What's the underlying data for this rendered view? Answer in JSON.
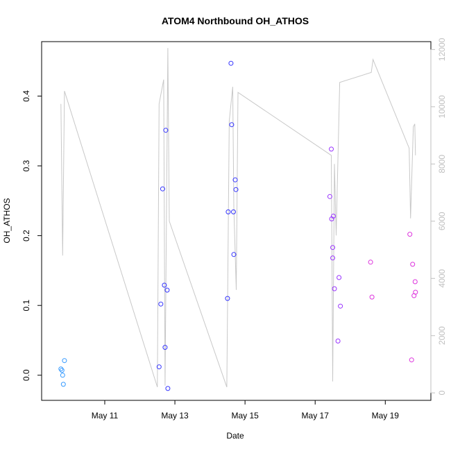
{
  "chart_data": {
    "type": "scatter",
    "title": "ATOM4 Northbound OH_ATHOS",
    "xlabel": "Date",
    "ylabel": "OH_ATHOS",
    "x_ticks": [
      {
        "label": "May 11",
        "day": 11
      },
      {
        "label": "May 13",
        "day": 13
      },
      {
        "label": "May 15",
        "day": 15
      },
      {
        "label": "May 17",
        "day": 17
      },
      {
        "label": "May 19",
        "day": 19
      }
    ],
    "xlim_days": [
      9.2,
      20.3
    ],
    "ylim": [
      -0.036,
      0.478
    ],
    "y_ticks": [
      0.0,
      0.1,
      0.2,
      0.3,
      0.4
    ],
    "y2lim": [
      -262,
      12276
    ],
    "y2_ticks": [
      0,
      2000,
      4000,
      6000,
      8000,
      10000,
      12000
    ],
    "grid": false,
    "series": [
      {
        "color": "#3399ff",
        "points": [
          {
            "x": 9.75,
            "y": 0.009
          },
          {
            "x": 9.78,
            "y": 0.007
          },
          {
            "x": 9.8,
            "y": 0.0
          },
          {
            "x": 9.82,
            "y": -0.013
          },
          {
            "x": 9.85,
            "y": 0.021
          }
        ]
      },
      {
        "color": "#3333ff",
        "points": [
          {
            "x": 12.55,
            "y": 0.012
          },
          {
            "x": 12.6,
            "y": 0.102
          },
          {
            "x": 12.65,
            "y": 0.267
          },
          {
            "x": 12.7,
            "y": 0.129
          },
          {
            "x": 12.72,
            "y": 0.04
          },
          {
            "x": 12.74,
            "y": 0.351
          },
          {
            "x": 12.78,
            "y": 0.122
          },
          {
            "x": 12.8,
            "y": -0.019
          },
          {
            "x": 14.5,
            "y": 0.11
          },
          {
            "x": 14.52,
            "y": 0.234
          },
          {
            "x": 14.6,
            "y": 0.447
          },
          {
            "x": 14.62,
            "y": 0.359
          },
          {
            "x": 14.67,
            "y": 0.234
          },
          {
            "x": 14.68,
            "y": 0.173
          },
          {
            "x": 14.72,
            "y": 0.28
          },
          {
            "x": 14.74,
            "y": 0.266
          }
        ]
      },
      {
        "color": "#9933ff",
        "points": [
          {
            "x": 17.42,
            "y": 0.256
          },
          {
            "x": 17.46,
            "y": 0.324
          },
          {
            "x": 17.47,
            "y": 0.224
          },
          {
            "x": 17.5,
            "y": 0.183
          },
          {
            "x": 17.5,
            "y": 0.168
          },
          {
            "x": 17.52,
            "y": 0.228
          },
          {
            "x": 17.55,
            "y": 0.124
          },
          {
            "x": 17.65,
            "y": 0.049
          },
          {
            "x": 17.68,
            "y": 0.14
          },
          {
            "x": 17.72,
            "y": 0.099
          }
        ]
      },
      {
        "color": "#dd33dd",
        "points": [
          {
            "x": 18.58,
            "y": 0.162
          },
          {
            "x": 18.62,
            "y": 0.112
          },
          {
            "x": 19.7,
            "y": 0.202
          },
          {
            "x": 19.75,
            "y": 0.022
          },
          {
            "x": 19.78,
            "y": 0.159
          },
          {
            "x": 19.82,
            "y": 0.114
          },
          {
            "x": 19.85,
            "y": 0.134
          },
          {
            "x": 19.86,
            "y": 0.119
          }
        ]
      }
    ],
    "secondary_line": {
      "color": "#c8c8c8",
      "points": [
        [
          9.75,
          10100
        ],
        [
          9.8,
          4800
        ],
        [
          9.85,
          10550
        ],
        [
          12.5,
          200
        ],
        [
          12.55,
          10100
        ],
        [
          12.68,
          10950
        ],
        [
          12.72,
          250
        ],
        [
          12.8,
          12050
        ],
        [
          12.84,
          6000
        ],
        [
          14.48,
          200
        ],
        [
          14.55,
          9500
        ],
        [
          14.65,
          10700
        ],
        [
          14.68,
          6500
        ],
        [
          14.75,
          3600
        ],
        [
          14.8,
          10500
        ],
        [
          17.46,
          8300
        ],
        [
          17.5,
          400
        ],
        [
          17.55,
          8000
        ],
        [
          17.6,
          5500
        ],
        [
          17.7,
          10850
        ],
        [
          18.6,
          11200
        ],
        [
          18.65,
          11650
        ],
        [
          19.68,
          8550
        ],
        [
          19.72,
          6100
        ],
        [
          19.8,
          9300
        ],
        [
          19.84,
          9400
        ],
        [
          19.86,
          8300
        ]
      ]
    }
  }
}
